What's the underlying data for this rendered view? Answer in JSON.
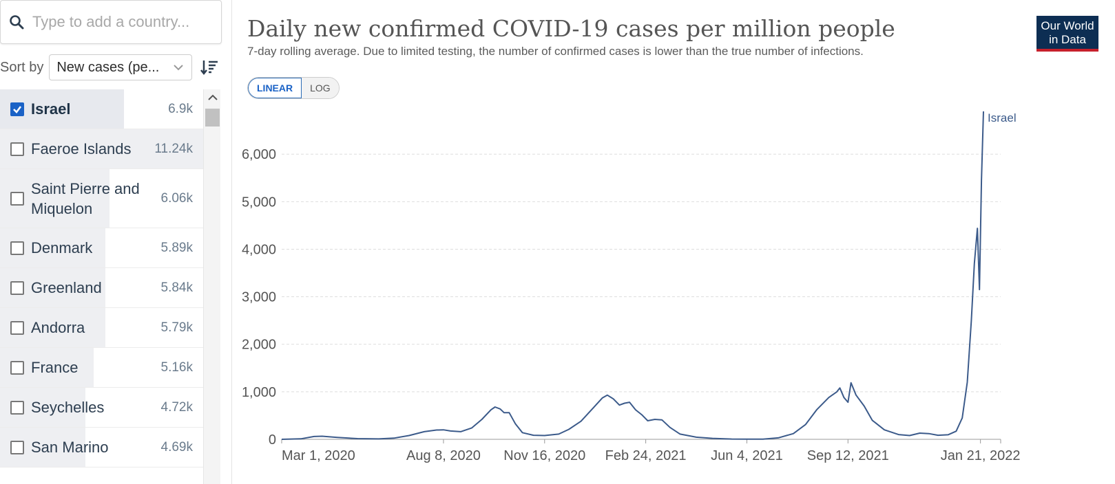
{
  "search": {
    "placeholder": "Type to add a country..."
  },
  "sort": {
    "label": "Sort by",
    "selected": "New cases (pe..."
  },
  "countries": [
    {
      "name": "Israel",
      "value": "6.9k",
      "selected": true,
      "fraction": 0.61
    },
    {
      "name": "Faeroe Islands",
      "value": "11.24k",
      "selected": false,
      "fraction": 1.0
    },
    {
      "name": "Saint Pierre and Miquelon",
      "value": "6.06k",
      "selected": false,
      "fraction": 0.54
    },
    {
      "name": "Denmark",
      "value": "5.89k",
      "selected": false,
      "fraction": 0.52
    },
    {
      "name": "Greenland",
      "value": "5.84k",
      "selected": false,
      "fraction": 0.52
    },
    {
      "name": "Andorra",
      "value": "5.79k",
      "selected": false,
      "fraction": 0.52
    },
    {
      "name": "France",
      "value": "5.16k",
      "selected": false,
      "fraction": 0.46
    },
    {
      "name": "Seychelles",
      "value": "4.72k",
      "selected": false,
      "fraction": 0.42
    },
    {
      "name": "San Marino",
      "value": "4.69k",
      "selected": false,
      "fraction": 0.42
    }
  ],
  "chart": {
    "title": "Daily new confirmed COVID-19 cases per million people",
    "subtitle": "7-day rolling average. Due to limited testing, the number of confirmed cases is lower than the true number of infections.",
    "logo_line1": "Our World",
    "logo_line2": "in Data",
    "scale_linear": "LINEAR",
    "scale_log": "LOG",
    "colors": {
      "line": "#3b5a8a",
      "grid": "#dddddd",
      "logo_bg": "#0d2e53",
      "logo_accent": "#c7202b",
      "accent": "#1a62c6"
    }
  },
  "chart_data": {
    "type": "line",
    "title": "Daily new confirmed COVID-19 cases per million people",
    "subtitle": "7-day rolling average. Due to limited testing, the number of confirmed cases is lower than the true number of infections.",
    "ylim": [
      0,
      6900
    ],
    "yticks": [
      0,
      1000,
      2000,
      3000,
      4000,
      5000,
      6000
    ],
    "ytick_labels": [
      "0",
      "1,000",
      "2,000",
      "3,000",
      "4,000",
      "5,000",
      "6,000"
    ],
    "xticks": [
      "2020-03-01",
      "2020-08-08",
      "2020-11-16",
      "2021-02-24",
      "2021-06-04",
      "2021-09-12",
      "2022-01-21"
    ],
    "xtick_labels": [
      "Mar 1, 2020",
      "Aug 8, 2020",
      "Nov 16, 2020",
      "Feb 24, 2021",
      "Jun 4, 2021",
      "Sep 12, 2021",
      "Jan 21, 2022"
    ],
    "xlim": [
      "2020-03-01",
      "2022-02-10"
    ],
    "grid": true,
    "series": [
      {
        "name": "Israel",
        "points": [
          [
            "2020-03-01",
            0
          ],
          [
            "2020-03-20",
            10
          ],
          [
            "2020-04-02",
            60
          ],
          [
            "2020-04-10",
            65
          ],
          [
            "2020-04-25",
            40
          ],
          [
            "2020-05-15",
            15
          ],
          [
            "2020-06-05",
            8
          ],
          [
            "2020-06-20",
            25
          ],
          [
            "2020-07-05",
            80
          ],
          [
            "2020-07-20",
            160
          ],
          [
            "2020-08-01",
            195
          ],
          [
            "2020-08-08",
            200
          ],
          [
            "2020-08-15",
            175
          ],
          [
            "2020-08-25",
            160
          ],
          [
            "2020-09-05",
            240
          ],
          [
            "2020-09-15",
            420
          ],
          [
            "2020-09-24",
            620
          ],
          [
            "2020-09-28",
            680
          ],
          [
            "2020-10-03",
            640
          ],
          [
            "2020-10-07",
            560
          ],
          [
            "2020-10-12",
            560
          ],
          [
            "2020-10-18",
            330
          ],
          [
            "2020-10-25",
            140
          ],
          [
            "2020-11-05",
            85
          ],
          [
            "2020-11-16",
            80
          ],
          [
            "2020-11-30",
            110
          ],
          [
            "2020-12-10",
            210
          ],
          [
            "2020-12-22",
            380
          ],
          [
            "2021-01-03",
            660
          ],
          [
            "2021-01-12",
            870
          ],
          [
            "2021-01-17",
            930
          ],
          [
            "2021-01-23",
            850
          ],
          [
            "2021-01-29",
            720
          ],
          [
            "2021-02-03",
            760
          ],
          [
            "2021-02-08",
            780
          ],
          [
            "2021-02-14",
            620
          ],
          [
            "2021-02-20",
            520
          ],
          [
            "2021-02-26",
            390
          ],
          [
            "2021-03-05",
            420
          ],
          [
            "2021-03-12",
            410
          ],
          [
            "2021-03-20",
            250
          ],
          [
            "2021-03-30",
            110
          ],
          [
            "2021-04-15",
            45
          ],
          [
            "2021-05-01",
            20
          ],
          [
            "2021-05-20",
            6
          ],
          [
            "2021-06-04",
            3
          ],
          [
            "2021-06-20",
            5
          ],
          [
            "2021-07-05",
            30
          ],
          [
            "2021-07-20",
            120
          ],
          [
            "2021-08-01",
            310
          ],
          [
            "2021-08-12",
            620
          ],
          [
            "2021-08-24",
            880
          ],
          [
            "2021-09-01",
            1000
          ],
          [
            "2021-09-04",
            1080
          ],
          [
            "2021-09-08",
            880
          ],
          [
            "2021-09-12",
            780
          ],
          [
            "2021-09-15",
            1190
          ],
          [
            "2021-09-20",
            930
          ],
          [
            "2021-09-28",
            700
          ],
          [
            "2021-10-06",
            400
          ],
          [
            "2021-10-18",
            200
          ],
          [
            "2021-11-01",
            100
          ],
          [
            "2021-11-12",
            80
          ],
          [
            "2021-11-22",
            130
          ],
          [
            "2021-12-01",
            120
          ],
          [
            "2021-12-10",
            85
          ],
          [
            "2021-12-20",
            95
          ],
          [
            "2021-12-28",
            170
          ],
          [
            "2022-01-03",
            450
          ],
          [
            "2022-01-08",
            1200
          ],
          [
            "2022-01-12",
            2500
          ],
          [
            "2022-01-15",
            3700
          ],
          [
            "2022-01-18",
            4440
          ],
          [
            "2022-01-20",
            3150
          ],
          [
            "2022-01-22",
            5450
          ],
          [
            "2022-01-24",
            6900
          ]
        ]
      }
    ]
  }
}
